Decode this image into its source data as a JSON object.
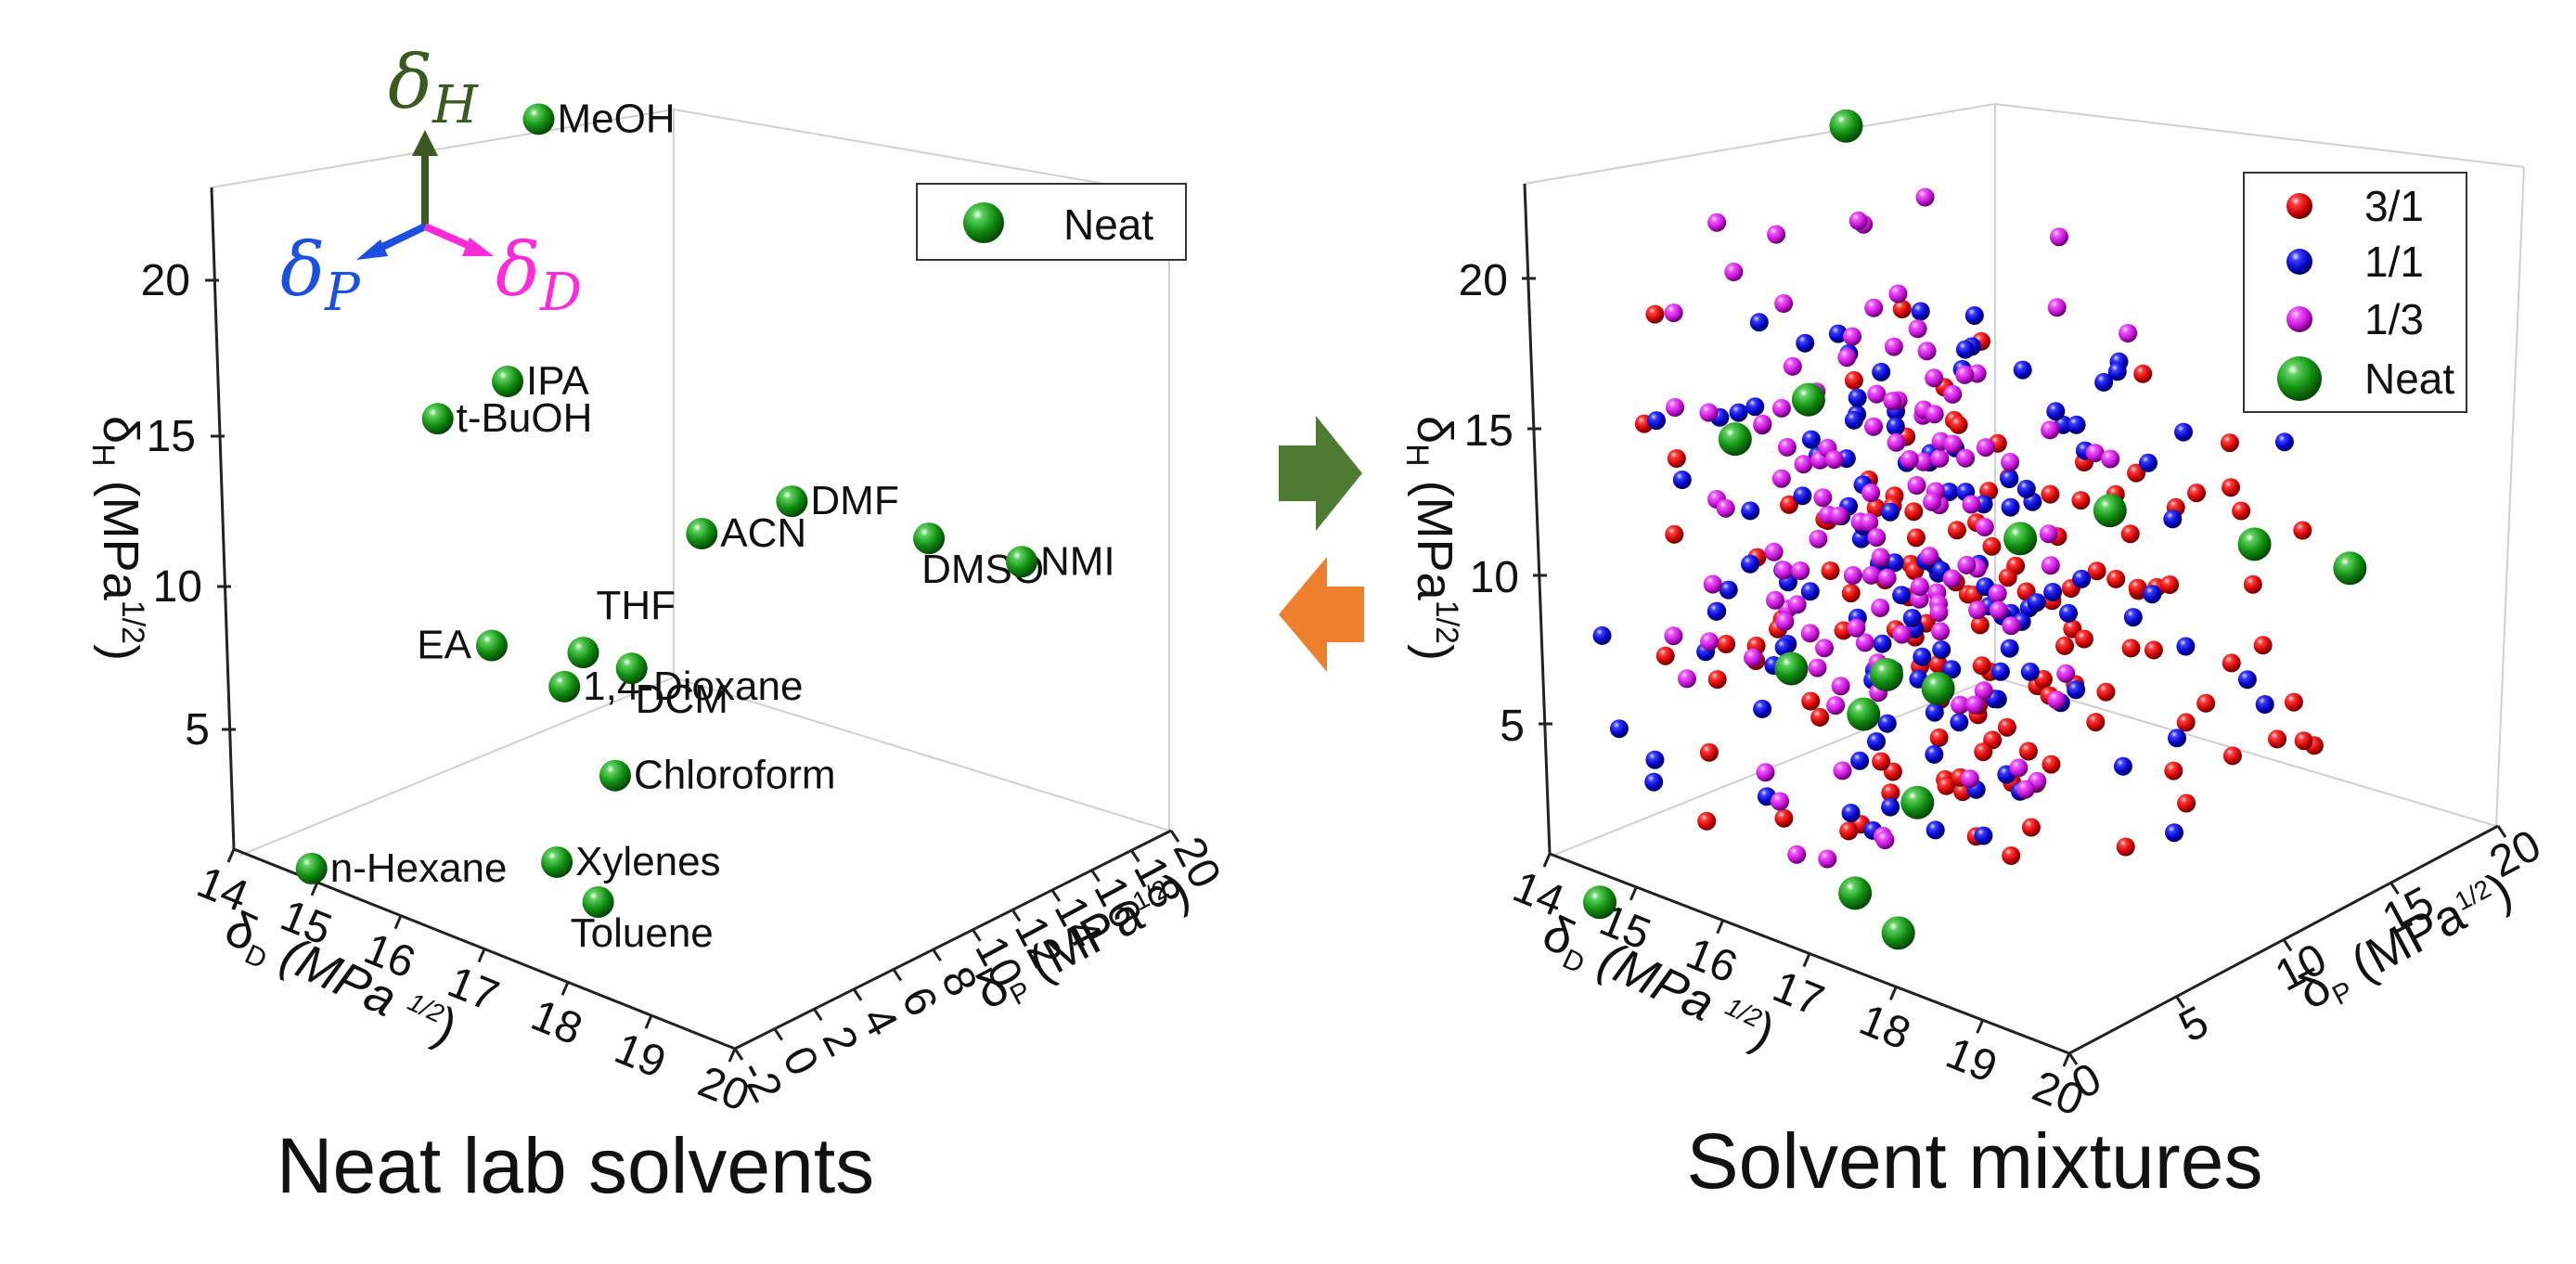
{
  "colors": {
    "neat": "#1a8a1a",
    "ratio_3_1": "#e01010",
    "ratio_1_1": "#1010c8",
    "ratio_1_3": "#d020e0",
    "arrow_right": "#4f7a32",
    "arrow_left": "#ee7f2d",
    "delta_h_arrow": "#3b5a22",
    "delta_p_arrow": "#1b4fe0",
    "delta_d_arrow": "#ff2ad8"
  },
  "compass": {
    "h_label": "δ",
    "h_sub": "H",
    "p_label": "δ",
    "p_sub": "P",
    "d_label": "δ",
    "d_sub": "D"
  },
  "arrows": {
    "right_icon": "arrow-right-icon",
    "left_icon": "arrow-left-icon"
  },
  "chart_data": [
    {
      "type": "scatter",
      "caption": "Neat lab solvents",
      "zlabel": "δH (MPa1/2)",
      "xlabel": "δD (MPa1/2)",
      "ylabel": "δP (MPa1/2)",
      "xlim": [
        14,
        20
      ],
      "ylim": [
        -2,
        20
      ],
      "zlim": [
        2,
        23
      ],
      "xticks": [
        "14",
        "15",
        "16",
        "17",
        "18",
        "19",
        "20"
      ],
      "yticks": [
        "-2",
        "0",
        "2",
        "4",
        "6",
        "8",
        "10",
        "12",
        "14",
        "16",
        "18",
        "20"
      ],
      "zticks": [
        "5",
        "10",
        "15",
        "20"
      ],
      "legend": [
        "Neat"
      ],
      "series": [
        {
          "name": "Neat",
          "points": [
            {
              "label": "MeOH",
              "d": 14.7,
              "p": 12.3,
              "h": 22.3
            },
            {
              "label": "IPA",
              "d": 15.8,
              "p": 6.1,
              "h": 16.4
            },
            {
              "label": "t-BuOH",
              "d": 15.2,
              "p": 5.1,
              "h": 14.7
            },
            {
              "label": "DMF",
              "d": 17.4,
              "p": 13.7,
              "h": 11.3
            },
            {
              "label": "DMSO",
              "d": 18.4,
              "p": 16.4,
              "h": 10.2
            },
            {
              "label": "NMI",
              "d": 19.7,
              "p": 15.6,
              "h": 11.2
            },
            {
              "label": "ACN",
              "d": 15.3,
              "p": 18.0,
              "h": 6.1
            },
            {
              "label": "THF",
              "d": 16.8,
              "p": 5.7,
              "h": 8.0
            },
            {
              "label": "EA",
              "d": 15.8,
              "p": 5.3,
              "h": 7.2
            },
            {
              "label": "1,4-Dioxane",
              "d": 17.5,
              "p": 1.8,
              "h": 9.0
            },
            {
              "label": "DCM",
              "d": 17.0,
              "p": 7.3,
              "h": 7.1
            },
            {
              "label": "Chloroform",
              "d": 17.8,
              "p": 3.1,
              "h": 5.7
            },
            {
              "label": "Xylenes",
              "d": 17.6,
              "p": 1.0,
              "h": 3.1
            },
            {
              "label": "Toluene",
              "d": 18.0,
              "p": 1.4,
              "h": 2.0
            },
            {
              "label": "n-Hexane",
              "d": 14.9,
              "p": 0.0,
              "h": 0.0
            }
          ]
        }
      ]
    },
    {
      "type": "scatter",
      "caption": "Solvent mixtures",
      "zlabel": "δH (MPa1/2)",
      "xlabel": "δD (MPa1/2)",
      "ylabel": "δP (MPa1/2)",
      "xlim": [
        14,
        20
      ],
      "ylim": [
        0,
        20
      ],
      "zlim": [
        2,
        23
      ],
      "xticks": [
        "14",
        "15",
        "16",
        "17",
        "18",
        "19",
        "20"
      ],
      "yticks": [
        "0",
        "5",
        "10",
        "15",
        "20"
      ],
      "zticks": [
        "5",
        "10",
        "15",
        "20"
      ],
      "legend": [
        "3/1",
        "1/1",
        "1/3",
        "Neat"
      ],
      "series": [
        {
          "name": "3/1",
          "color": "#e01010"
        },
        {
          "name": "1/1",
          "color": "#1010c8"
        },
        {
          "name": "1/3",
          "color": "#d020e0"
        },
        {
          "name": "Neat",
          "color": "#1a8a1a"
        }
      ]
    }
  ]
}
